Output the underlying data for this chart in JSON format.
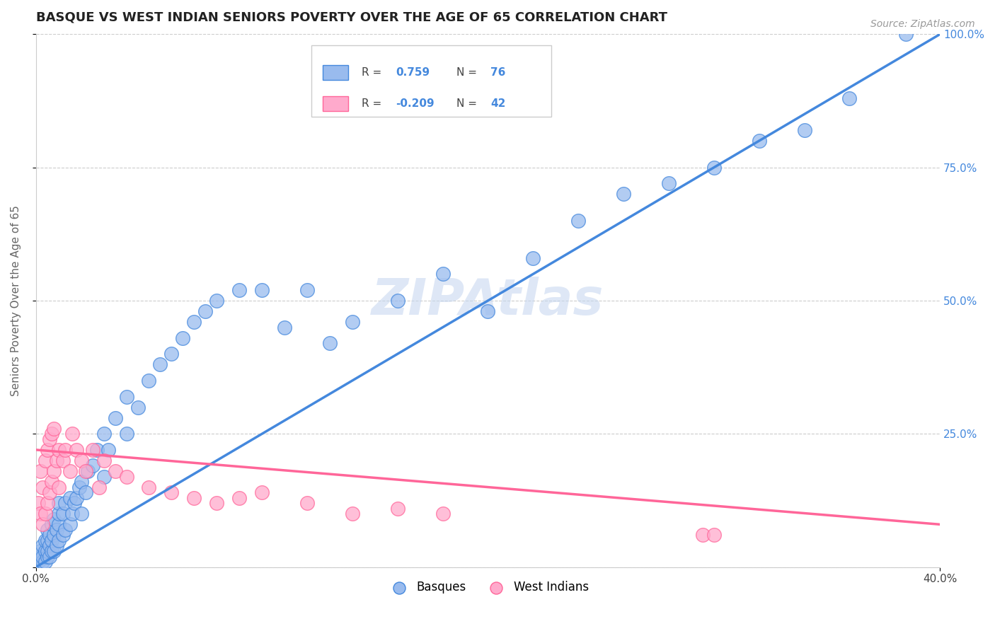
{
  "title": "BASQUE VS WEST INDIAN SENIORS POVERTY OVER THE AGE OF 65 CORRELATION CHART",
  "source": "Source: ZipAtlas.com",
  "ylabel": "Seniors Poverty Over the Age of 65",
  "xlim": [
    0.0,
    0.4
  ],
  "ylim": [
    0.0,
    1.0
  ],
  "blue_color": "#99BBEE",
  "pink_color": "#FFAACC",
  "blue_line_color": "#4488DD",
  "pink_line_color": "#FF6699",
  "legend_R_blue": "0.759",
  "legend_N_blue": "76",
  "legend_R_pink": "-0.209",
  "legend_N_pink": "42",
  "legend_label_blue": "Basques",
  "legend_label_pink": "West Indians",
  "watermark": "ZIPAtlas",
  "background_color": "#FFFFFF",
  "grid_color": "#CCCCCC",
  "blue_scatter_x": [
    0.001,
    0.002,
    0.002,
    0.003,
    0.003,
    0.003,
    0.004,
    0.004,
    0.004,
    0.005,
    0.005,
    0.005,
    0.005,
    0.006,
    0.006,
    0.006,
    0.007,
    0.007,
    0.007,
    0.008,
    0.008,
    0.008,
    0.009,
    0.009,
    0.01,
    0.01,
    0.01,
    0.01,
    0.012,
    0.012,
    0.013,
    0.013,
    0.015,
    0.015,
    0.016,
    0.017,
    0.018,
    0.019,
    0.02,
    0.02,
    0.022,
    0.023,
    0.025,
    0.027,
    0.03,
    0.03,
    0.032,
    0.035,
    0.04,
    0.04,
    0.045,
    0.05,
    0.055,
    0.06,
    0.065,
    0.07,
    0.075,
    0.08,
    0.09,
    0.1,
    0.11,
    0.12,
    0.13,
    0.14,
    0.16,
    0.18,
    0.2,
    0.22,
    0.24,
    0.26,
    0.28,
    0.3,
    0.32,
    0.34,
    0.36,
    0.385
  ],
  "blue_scatter_y": [
    0.01,
    0.02,
    0.03,
    0.01,
    0.02,
    0.04,
    0.01,
    0.03,
    0.05,
    0.02,
    0.03,
    0.05,
    0.07,
    0.02,
    0.04,
    0.06,
    0.03,
    0.05,
    0.08,
    0.03,
    0.06,
    0.09,
    0.04,
    0.07,
    0.05,
    0.08,
    0.1,
    0.12,
    0.06,
    0.1,
    0.07,
    0.12,
    0.08,
    0.13,
    0.1,
    0.12,
    0.13,
    0.15,
    0.1,
    0.16,
    0.14,
    0.18,
    0.19,
    0.22,
    0.17,
    0.25,
    0.22,
    0.28,
    0.25,
    0.32,
    0.3,
    0.35,
    0.38,
    0.4,
    0.43,
    0.46,
    0.48,
    0.5,
    0.52,
    0.52,
    0.45,
    0.52,
    0.42,
    0.46,
    0.5,
    0.55,
    0.48,
    0.58,
    0.65,
    0.7,
    0.72,
    0.75,
    0.8,
    0.82,
    0.88,
    1.0
  ],
  "pink_scatter_x": [
    0.001,
    0.002,
    0.002,
    0.003,
    0.003,
    0.004,
    0.004,
    0.005,
    0.005,
    0.006,
    0.006,
    0.007,
    0.007,
    0.008,
    0.008,
    0.009,
    0.01,
    0.01,
    0.012,
    0.013,
    0.015,
    0.016,
    0.018,
    0.02,
    0.022,
    0.025,
    0.028,
    0.03,
    0.035,
    0.04,
    0.05,
    0.06,
    0.07,
    0.08,
    0.09,
    0.1,
    0.12,
    0.14,
    0.16,
    0.18,
    0.295,
    0.3
  ],
  "pink_scatter_y": [
    0.12,
    0.1,
    0.18,
    0.08,
    0.15,
    0.1,
    0.2,
    0.12,
    0.22,
    0.14,
    0.24,
    0.16,
    0.25,
    0.18,
    0.26,
    0.2,
    0.15,
    0.22,
    0.2,
    0.22,
    0.18,
    0.25,
    0.22,
    0.2,
    0.18,
    0.22,
    0.15,
    0.2,
    0.18,
    0.17,
    0.15,
    0.14,
    0.13,
    0.12,
    0.13,
    0.14,
    0.12,
    0.1,
    0.11,
    0.1,
    0.06,
    0.06
  ],
  "blue_trend_x": [
    0.0,
    0.4
  ],
  "blue_trend_y": [
    0.0,
    1.0
  ],
  "pink_trend_x": [
    0.0,
    0.4
  ],
  "pink_trend_y": [
    0.22,
    0.08
  ],
  "title_fontsize": 13,
  "axis_label_fontsize": 11,
  "tick_fontsize": 11,
  "legend_fontsize": 12,
  "watermark_fontsize": 52,
  "watermark_color": "#C8D8F0",
  "watermark_alpha": 0.6
}
